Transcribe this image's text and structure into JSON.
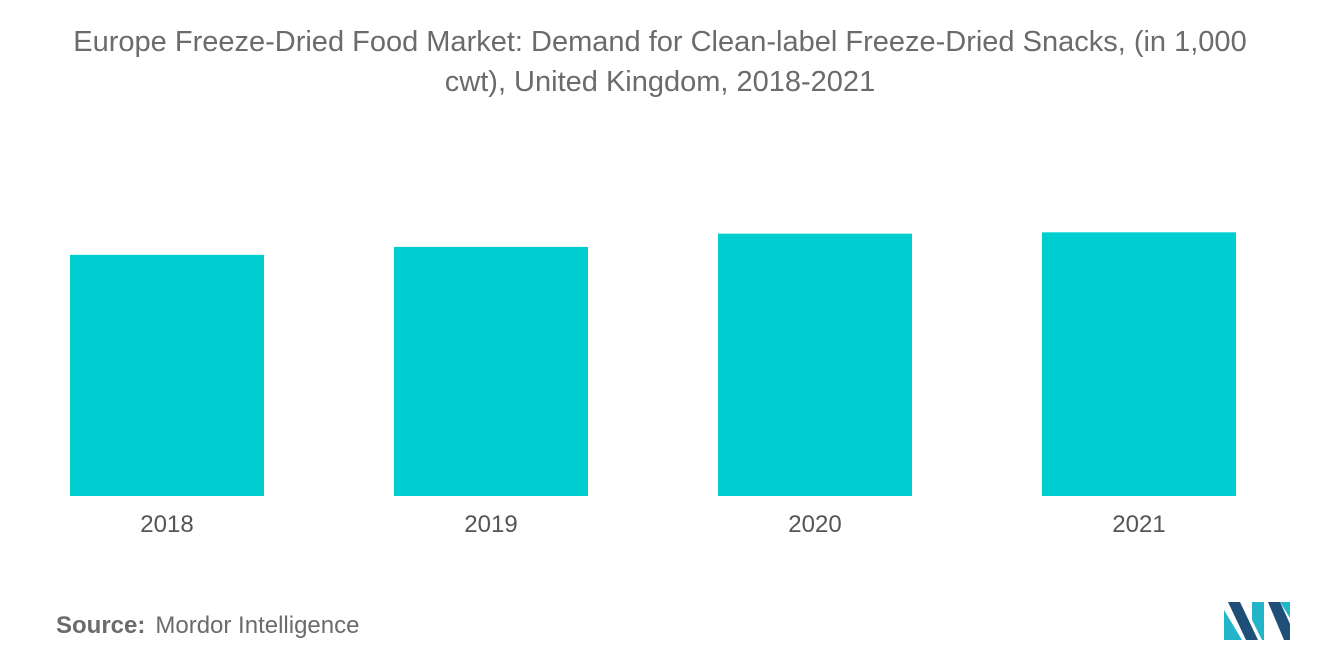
{
  "title_line1": "Europe Freeze-Dried Food Market: Demand for Clean-label Freeze-Dried Snacks, (in 1,000",
  "title_line2": "cwt), United Kingdom, 2018-2021",
  "source_label": "Source:",
  "source_value": "Mordor Intelligence",
  "colors": {
    "bar": "#00CED1",
    "text": "#6b6b6b",
    "logo_dark": "#1f4e79",
    "logo_light": "#22b5c9"
  },
  "chart_data": {
    "type": "bar",
    "title": "Europe Freeze-Dried Food Market: Demand for Clean-label Freeze-Dried Snacks, (in 1,000 cwt), United Kingdom, 2018-2021",
    "categories": [
      "2018",
      "2019",
      "2020",
      "2021"
    ],
    "values": [
      91,
      94,
      99,
      99.5
    ],
    "ylim": [
      0,
      100
    ],
    "xlabel": "",
    "ylabel": "",
    "grid": false,
    "legend": "none"
  }
}
